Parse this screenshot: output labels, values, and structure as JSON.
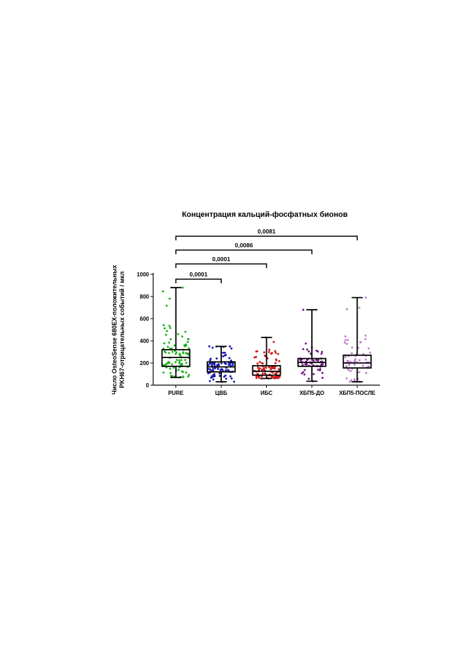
{
  "chart_data": {
    "type": "boxplot",
    "title": "Концентрация кальций-фосфатных бионов",
    "ylabel_lines": [
      "Число OsteoSense 680EX-положительных",
      "PKH67-отрицательных событий / мкл"
    ],
    "xlabel": "",
    "ylim": [
      0,
      1000
    ],
    "yticks": [
      0,
      200,
      400,
      600,
      800,
      1000
    ],
    "categories": [
      "PURE",
      "ЦВБ",
      "ИБС",
      "ХБП5-ДО",
      "ХБП5-ПОСЛЕ"
    ],
    "series": [
      {
        "category": "PURE",
        "color": "#1db31d",
        "min": 70,
        "q1": 170,
        "median": 250,
        "q3": 320,
        "max": 880,
        "n": 90
      },
      {
        "category": "ЦВБ",
        "color": "#1a1ab3",
        "min": 30,
        "q1": 120,
        "median": 165,
        "q3": 210,
        "max": 350,
        "n": 85
      },
      {
        "category": "ИБС",
        "color": "#cc1a1a",
        "min": 60,
        "q1": 90,
        "median": 125,
        "q3": 175,
        "max": 430,
        "n": 95
      },
      {
        "category": "ХБП5-ДО",
        "color": "#7a1a8c",
        "min": 35,
        "q1": 170,
        "median": 205,
        "q3": 240,
        "max": 680,
        "n": 60
      },
      {
        "category": "ХБП5-ПОСЛЕ",
        "color": "#c27fd1",
        "min": 30,
        "q1": 155,
        "median": 200,
        "q3": 270,
        "max": 790,
        "n": 60
      }
    ],
    "comparisons": [
      {
        "from": "PURE",
        "to": "ЦВБ",
        "p": "0,0001"
      },
      {
        "from": "PURE",
        "to": "ИБС",
        "p": "0,0001"
      },
      {
        "from": "PURE",
        "to": "ХБП5-ДО",
        "p": "0,0086"
      },
      {
        "from": "PURE",
        "to": "ХБП5-ПОСЛЕ",
        "p": "0,0081"
      }
    ],
    "grid": false
  }
}
